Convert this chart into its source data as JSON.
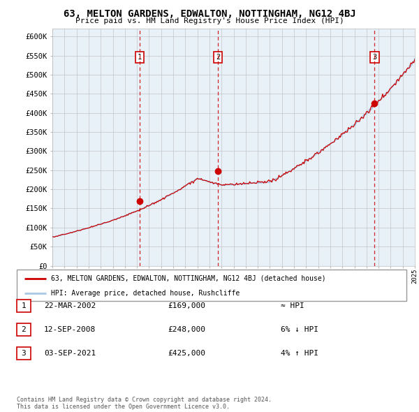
{
  "title": "63, MELTON GARDENS, EDWALTON, NOTTINGHAM, NG12 4BJ",
  "subtitle": "Price paid vs. HM Land Registry's House Price Index (HPI)",
  "ylim": [
    0,
    620000
  ],
  "yticks": [
    0,
    50000,
    100000,
    150000,
    200000,
    250000,
    300000,
    350000,
    400000,
    450000,
    500000,
    550000,
    600000
  ],
  "ytick_labels": [
    "£0",
    "£50K",
    "£100K",
    "£150K",
    "£200K",
    "£250K",
    "£300K",
    "£350K",
    "£400K",
    "£450K",
    "£500K",
    "£550K",
    "£600K"
  ],
  "hpi_color": "#a8c8e8",
  "price_color": "#cc0000",
  "background_color": "#ffffff",
  "chart_bg_color": "#e8f0f8",
  "grid_color": "#bbbbbb",
  "dashed_line_color": "#cc0000",
  "sale_years": [
    2002.22,
    2008.71,
    2021.67
  ],
  "sale_prices": [
    169000,
    248000,
    425000
  ],
  "sale_labels": [
    "1",
    "2",
    "3"
  ],
  "legend_line1": "63, MELTON GARDENS, EDWALTON, NOTTINGHAM, NG12 4BJ (detached house)",
  "legend_line2": "HPI: Average price, detached house, Rushcliffe",
  "table_rows": [
    {
      "num": "1",
      "date": "22-MAR-2002",
      "price": "£169,000",
      "hpi": "≈ HPI"
    },
    {
      "num": "2",
      "date": "12-SEP-2008",
      "price": "£248,000",
      "hpi": "6% ↓ HPI"
    },
    {
      "num": "3",
      "date": "03-SEP-2021",
      "price": "£425,000",
      "hpi": "4% ↑ HPI"
    }
  ],
  "footer": "Contains HM Land Registry data © Crown copyright and database right 2024.\nThis data is licensed under the Open Government Licence v3.0."
}
